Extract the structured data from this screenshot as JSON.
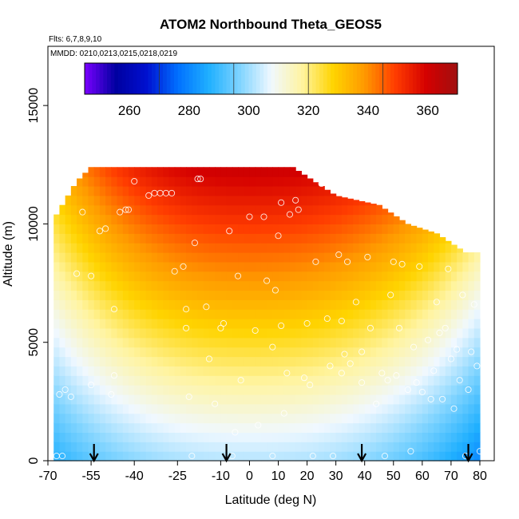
{
  "chart_data": {
    "type": "heatmap",
    "title": "ATOM2 Northbound Theta_GEOS5",
    "annotations": {
      "flights": "Flts: 6,7,8,9,10",
      "dates": "MMDD: 0210,0213,0215,0218,0219"
    },
    "xlabel": "Latitude (deg N)",
    "ylabel": "Altitude (m)",
    "xlim": [
      -70,
      85
    ],
    "ylim": [
      0,
      17500
    ],
    "x_ticks": [
      -70,
      -55,
      -40,
      -25,
      -10,
      0,
      10,
      20,
      30,
      40,
      50,
      60,
      70,
      80
    ],
    "x_tick_labels": [
      "-70",
      "-55",
      "-40",
      "-25",
      "-10",
      "0",
      "10",
      "20",
      "30",
      "40",
      "50",
      "60",
      "70",
      "80"
    ],
    "y_ticks": [
      0,
      5000,
      10000,
      15000
    ],
    "y_tick_labels": [
      "0",
      "5000",
      "10000",
      "15000"
    ],
    "colorbar": {
      "min": 245,
      "max": 370,
      "ticks": [
        260,
        280,
        300,
        320,
        340,
        360
      ],
      "tick_labels": [
        "260",
        "280",
        "300",
        "320",
        "340",
        "360"
      ],
      "colors": [
        "#7a00ff",
        "#0000a0",
        "#0010d0",
        "#0070ff",
        "#20b0ff",
        "#80d4ff",
        "#f0f8ff",
        "#fff4a0",
        "#ffd400",
        "#ff9a00",
        "#ff3c00",
        "#d40000",
        "#a01010"
      ]
    },
    "field": {
      "lat_range": [
        -68,
        80
      ],
      "lat_step": 2,
      "alt_step": 400,
      "top_profile": {
        "lat": [
          -68,
          -60,
          -55,
          -45,
          -35,
          -20,
          -15,
          0,
          15,
          30,
          45,
          55,
          65,
          70,
          75,
          80
        ],
        "alt": [
          10200,
          11800,
          12400,
          12400,
          12400,
          12400,
          12400,
          12400,
          12400,
          11200,
          10800,
          10000,
          9600,
          9200,
          8800,
          8800
        ]
      }
    },
    "cross_section_points": [
      [
        -67,
        200
      ],
      [
        -65,
        200
      ],
      [
        -66,
        2800
      ],
      [
        -64,
        3000
      ],
      [
        -62,
        2700
      ],
      [
        -60,
        7900
      ],
      [
        -58,
        10500
      ],
      [
        -55,
        3200
      ],
      [
        -55,
        7800
      ],
      [
        -52,
        9700
      ],
      [
        -50,
        9800
      ],
      [
        -48,
        2800
      ],
      [
        -47,
        3600
      ],
      [
        -47,
        6400
      ],
      [
        -45,
        10500
      ],
      [
        -43,
        10600
      ],
      [
        -42,
        10600
      ],
      [
        -40,
        11800
      ],
      [
        -35,
        11200
      ],
      [
        -33,
        11300
      ],
      [
        -31,
        11300
      ],
      [
        -29,
        11300
      ],
      [
        -27,
        11300
      ],
      [
        -26,
        8000
      ],
      [
        -23,
        8200
      ],
      [
        -22,
        5600
      ],
      [
        -22,
        6400
      ],
      [
        -21,
        2700
      ],
      [
        -20,
        200
      ],
      [
        -19,
        9200
      ],
      [
        -18,
        11900
      ],
      [
        -17,
        11900
      ],
      [
        -15,
        6500
      ],
      [
        -14,
        4300
      ],
      [
        -12,
        2400
      ],
      [
        -10,
        5600
      ],
      [
        -9,
        5800
      ],
      [
        -7,
        9700
      ],
      [
        -6,
        200
      ],
      [
        -5,
        1200
      ],
      [
        -4,
        7800
      ],
      [
        -3,
        3400
      ],
      [
        0,
        10300
      ],
      [
        2,
        5500
      ],
      [
        3,
        1500
      ],
      [
        5,
        10300
      ],
      [
        6,
        7600
      ],
      [
        8,
        200
      ],
      [
        8,
        4800
      ],
      [
        9,
        7200
      ],
      [
        10,
        9500
      ],
      [
        11,
        10900
      ],
      [
        11,
        5700
      ],
      [
        12,
        2000
      ],
      [
        13,
        3700
      ],
      [
        14,
        10400
      ],
      [
        16,
        11000
      ],
      [
        17,
        10600
      ],
      [
        19,
        3500
      ],
      [
        20,
        5800
      ],
      [
        21,
        3200
      ],
      [
        22,
        200
      ],
      [
        23,
        8400
      ],
      [
        25,
        11700
      ],
      [
        27,
        6000
      ],
      [
        28,
        4000
      ],
      [
        29,
        200
      ],
      [
        31,
        8700
      ],
      [
        32,
        3700
      ],
      [
        32,
        5900
      ],
      [
        33,
        4500
      ],
      [
        34,
        8400
      ],
      [
        35,
        11700
      ],
      [
        35,
        4100
      ],
      [
        37,
        6700
      ],
      [
        39,
        3300
      ],
      [
        39,
        4600
      ],
      [
        41,
        8600
      ],
      [
        42,
        5600
      ],
      [
        44,
        2400
      ],
      [
        46,
        3700
      ],
      [
        47,
        200
      ],
      [
        48,
        3400
      ],
      [
        49,
        7000
      ],
      [
        50,
        8400
      ],
      [
        51,
        3600
      ],
      [
        52,
        5600
      ],
      [
        53,
        8300
      ],
      [
        55,
        3000
      ],
      [
        56,
        400
      ],
      [
        57,
        4800
      ],
      [
        58,
        3300
      ],
      [
        59,
        8200
      ],
      [
        60,
        2900
      ],
      [
        62,
        5100
      ],
      [
        63,
        2600
      ],
      [
        64,
        3800
      ],
      [
        65,
        6700
      ],
      [
        66,
        5400
      ],
      [
        67,
        2600
      ],
      [
        68,
        5600
      ],
      [
        69,
        8100
      ],
      [
        70,
        4300
      ],
      [
        71,
        2200
      ],
      [
        72,
        4700
      ],
      [
        73,
        3400
      ],
      [
        74,
        7000
      ],
      [
        75,
        200
      ],
      [
        76,
        3000
      ],
      [
        77,
        4600
      ],
      [
        78,
        6600
      ],
      [
        79,
        4000
      ],
      [
        80,
        400
      ]
    ],
    "arrows_lat": [
      -54,
      -8,
      39,
      76
    ]
  }
}
